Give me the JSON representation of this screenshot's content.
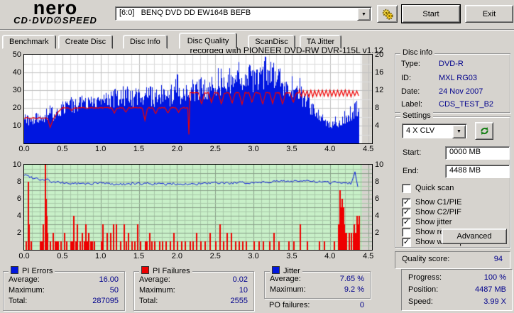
{
  "brand": {
    "line1": "nero",
    "line2a": "CD·DVD",
    "disc": "∅",
    "line2b": "SPEED"
  },
  "toolbar": {
    "drive": "[6:0]   BENQ DVD DD EW164B BEFB",
    "start": "Start",
    "exit": "Exit"
  },
  "tabs": [
    {
      "label": "Benchmark",
      "active": false
    },
    {
      "label": "Create Disc",
      "active": false
    },
    {
      "label": "Disc Info",
      "active": false
    },
    {
      "label": "Disc Quality",
      "active": true
    },
    {
      "label": "ScanDisc",
      "active": false
    },
    {
      "label": "TA Jitter",
      "active": false
    }
  ],
  "chart_data": [
    {
      "type": "bar",
      "title": "recorded with PIONEER DVD-RW  DVR-115L v1.12",
      "x_ticks": [
        "0.0",
        "0.5",
        "1.0",
        "1.5",
        "2.0",
        "2.5",
        "3.0",
        "3.5",
        "4.0",
        "4.5"
      ],
      "left_ticks": [
        50,
        40,
        30,
        20,
        10
      ],
      "right_ticks": [
        20,
        16,
        12,
        8,
        4
      ],
      "x_range": [
        0,
        4.55
      ],
      "left_range": [
        0,
        50
      ],
      "right_range": [
        0,
        20
      ],
      "data_end": 4.38,
      "colors": {
        "bars": "#0016e0",
        "speed_line": "#f00000",
        "grid_minor": "#dcdcdc",
        "grid_major": "#c0c0c0",
        "bg": "#ffffff",
        "tail": "#d6d3ce"
      },
      "pi_errors_envelope": [
        [
          0,
          13,
          18
        ],
        [
          0.1,
          12,
          16
        ],
        [
          0.2,
          13,
          18
        ],
        [
          0.3,
          15,
          21
        ],
        [
          0.4,
          16,
          22
        ],
        [
          0.5,
          19,
          24
        ],
        [
          0.6,
          21,
          26
        ],
        [
          0.7,
          21,
          26
        ],
        [
          0.8,
          22,
          28
        ],
        [
          0.9,
          22,
          27
        ],
        [
          1,
          23,
          28
        ],
        [
          1.1,
          23,
          30
        ],
        [
          1.2,
          24,
          31
        ],
        [
          1.3,
          26,
          33
        ],
        [
          1.4,
          25,
          31
        ],
        [
          1.5,
          27,
          34
        ],
        [
          1.6,
          27,
          33
        ],
        [
          1.7,
          25,
          31
        ],
        [
          1.8,
          26,
          33
        ],
        [
          1.9,
          26,
          36
        ],
        [
          2,
          26,
          40
        ],
        [
          2.1,
          27,
          41
        ],
        [
          2.2,
          29,
          36
        ],
        [
          2.3,
          31,
          38
        ],
        [
          2.4,
          30,
          37
        ],
        [
          2.5,
          32,
          42
        ],
        [
          2.6,
          34,
          44
        ],
        [
          2.7,
          33,
          42
        ],
        [
          2.8,
          35,
          47
        ],
        [
          2.9,
          37,
          49
        ],
        [
          3,
          36,
          46
        ],
        [
          3.1,
          37,
          48
        ],
        [
          3.2,
          38,
          50
        ],
        [
          3.3,
          36,
          47
        ],
        [
          3.4,
          33,
          43
        ],
        [
          3.5,
          30,
          41
        ],
        [
          3.6,
          27,
          37
        ],
        [
          3.7,
          22,
          31
        ],
        [
          3.8,
          16,
          23
        ],
        [
          3.9,
          12,
          17
        ],
        [
          4,
          10,
          14
        ],
        [
          4.1,
          11,
          16
        ],
        [
          4.2,
          13,
          19
        ],
        [
          4.3,
          16,
          22
        ],
        [
          4.38,
          20,
          26
        ]
      ],
      "write_speed": {
        "intro": [
          [
            0,
            14
          ],
          [
            0.04,
            14.6
          ],
          [
            0.08,
            13.8
          ],
          [
            0.12,
            14.5
          ],
          [
            0.16,
            13.9
          ],
          [
            0.2,
            14.5
          ],
          [
            0.24,
            14
          ],
          [
            0.28,
            14.4
          ],
          [
            0.31,
            13.8
          ],
          [
            0.34,
            9
          ],
          [
            0.38,
            13.5
          ],
          [
            0.44,
            17.5
          ],
          [
            0.5,
            20
          ]
        ],
        "flat1": {
          "from": 0.5,
          "to": 2.13,
          "level": 20,
          "dip_width": 0.035,
          "dips": [
            [
              0.62,
              18.5
            ],
            [
              1.18,
              17
            ],
            [
              1.33,
              17.5
            ],
            [
              1.58,
              13
            ],
            [
              1.72,
              16.5
            ],
            [
              1.88,
              17
            ],
            [
              2.02,
              17.5
            ]
          ]
        },
        "drop": [
          [
            2.14,
            20
          ],
          [
            2.155,
            5
          ],
          [
            2.17,
            28.5
          ]
        ],
        "flat2": {
          "from": 2.17,
          "to": 3.6,
          "level": 28.5,
          "dip_width": 0.04,
          "dips": [
            [
              2.32,
              22
            ],
            [
              2.45,
              23
            ],
            [
              2.58,
              22
            ],
            [
              2.72,
              22.5
            ],
            [
              2.85,
              22
            ],
            [
              2.98,
              23
            ],
            [
              3.12,
              22
            ],
            [
              3.25,
              22.5
            ],
            [
              3.38,
              22
            ],
            [
              3.52,
              23
            ]
          ]
        },
        "sawtooth": {
          "from": 3.6,
          "to": 4.38,
          "min": 26.5,
          "max": 29.8,
          "period": 0.05
        }
      }
    },
    {
      "type": "line",
      "x_ticks": [
        "0.0",
        "0.5",
        "1.0",
        "1.5",
        "2.0",
        "2.5",
        "3.0",
        "3.5",
        "4.0",
        "4.5"
      ],
      "left_ticks": [
        10,
        8,
        6,
        4,
        2
      ],
      "right_ticks": [
        10,
        8,
        6,
        4,
        2
      ],
      "x_range": [
        0,
        4.55
      ],
      "y_range": [
        0,
        10
      ],
      "data_end": 4.38,
      "colors": {
        "bg": "#c8f0c8",
        "grid_minor": "#a8c8a8",
        "grid_major": "#8aa08a",
        "jitter_line": "#1020dd",
        "pif_bars": "#ee0000",
        "tail": "#d6d3ce"
      },
      "jitter_line": [
        [
          0,
          8.8
        ],
        [
          0.05,
          8.7
        ],
        [
          0.1,
          8.5
        ],
        [
          0.15,
          8.45
        ],
        [
          0.2,
          8.3
        ],
        [
          0.25,
          8.2
        ],
        [
          0.3,
          8.35
        ],
        [
          0.35,
          7.95
        ],
        [
          0.45,
          7.9
        ],
        [
          0.6,
          7.8
        ],
        [
          0.8,
          7.75
        ],
        [
          1,
          7.85
        ],
        [
          1.2,
          7.7
        ],
        [
          1.4,
          7.75
        ],
        [
          1.6,
          7.8
        ],
        [
          1.8,
          7.7
        ],
        [
          2,
          7.75
        ],
        [
          2.2,
          7.7
        ],
        [
          2.4,
          7.8
        ],
        [
          2.6,
          7.85
        ],
        [
          2.8,
          7.85
        ],
        [
          3,
          7.9
        ],
        [
          3.2,
          8
        ],
        [
          3.4,
          8.05
        ],
        [
          3.6,
          8.1
        ],
        [
          3.8,
          8
        ],
        [
          4,
          7.9
        ],
        [
          4.1,
          7.95
        ],
        [
          4.2,
          7.9
        ],
        [
          4.28,
          7.8
        ],
        [
          4.33,
          9.2
        ],
        [
          4.36,
          7.5
        ]
      ],
      "pif_spikes": [
        [
          0.02,
          1
        ],
        [
          0.05,
          8
        ],
        [
          0.06,
          3
        ],
        [
          0.08,
          1
        ],
        [
          0.2,
          1
        ],
        [
          0.22,
          1
        ],
        [
          0.24,
          3
        ],
        [
          0.27,
          10
        ],
        [
          0.28,
          6
        ],
        [
          0.29,
          4
        ],
        [
          0.3,
          2
        ],
        [
          0.33,
          1
        ],
        [
          0.37,
          2
        ],
        [
          0.4,
          1
        ],
        [
          0.42,
          1
        ],
        [
          0.44,
          1
        ],
        [
          0.47,
          1
        ],
        [
          0.52,
          2
        ],
        [
          0.55,
          1
        ],
        [
          0.6,
          1
        ],
        [
          0.62,
          1
        ],
        [
          0.64,
          4
        ],
        [
          0.67,
          1
        ],
        [
          0.69,
          3
        ],
        [
          0.72,
          1
        ],
        [
          0.75,
          2
        ],
        [
          0.78,
          1
        ],
        [
          0.8,
          3
        ],
        [
          0.82,
          1
        ],
        [
          0.84,
          2
        ],
        [
          0.86,
          1
        ],
        [
          0.88,
          1
        ],
        [
          0.91,
          1
        ],
        [
          1,
          1
        ],
        [
          1.02,
          3
        ],
        [
          1.08,
          2
        ],
        [
          1.12,
          2
        ],
        [
          1.16,
          3
        ],
        [
          1.2,
          3
        ],
        [
          1.25,
          1
        ],
        [
          1.3,
          3
        ],
        [
          1.33,
          1
        ],
        [
          1.36,
          2
        ],
        [
          1.4,
          1
        ],
        [
          1.44,
          1
        ],
        [
          1.48,
          3
        ],
        [
          1.51,
          1
        ],
        [
          1.58,
          1
        ],
        [
          1.6,
          1
        ],
        [
          1.63,
          2
        ],
        [
          1.66,
          1
        ],
        [
          1.7,
          1
        ],
        [
          1.76,
          1
        ],
        [
          1.8,
          1
        ],
        [
          1.85,
          1
        ],
        [
          1.9,
          1
        ],
        [
          1.95,
          2
        ],
        [
          2,
          1
        ],
        [
          2.05,
          1
        ],
        [
          2.1,
          1
        ],
        [
          2.16,
          1
        ],
        [
          2.2,
          1
        ],
        [
          2.25,
          2
        ],
        [
          2.3,
          1
        ],
        [
          2.36,
          1
        ],
        [
          2.42,
          2
        ],
        [
          2.5,
          1
        ],
        [
          2.55,
          3
        ],
        [
          2.6,
          1
        ],
        [
          2.65,
          2
        ],
        [
          2.7,
          2
        ],
        [
          2.76,
          1
        ],
        [
          2.8,
          1
        ],
        [
          2.85,
          1
        ],
        [
          2.9,
          1
        ],
        [
          3,
          1
        ],
        [
          3.06,
          1
        ],
        [
          3.12,
          1
        ],
        [
          3.2,
          1
        ],
        [
          3.26,
          2
        ],
        [
          3.32,
          1
        ],
        [
          3.45,
          1
        ],
        [
          3.52,
          1
        ],
        [
          3.6,
          3
        ],
        [
          3.7,
          1
        ],
        [
          3.85,
          1
        ],
        [
          3.92,
          1
        ],
        [
          4.05,
          1
        ],
        [
          4.1,
          3
        ],
        [
          4.12,
          7
        ],
        [
          4.14,
          5
        ],
        [
          4.15,
          6
        ],
        [
          4.16,
          4
        ],
        [
          4.17,
          5
        ],
        [
          4.18,
          3
        ],
        [
          4.19,
          2
        ],
        [
          4.21,
          2
        ],
        [
          4.24,
          2
        ],
        [
          4.27,
          2
        ],
        [
          4.3,
          2
        ],
        [
          4.31,
          3
        ],
        [
          4.33,
          2
        ],
        [
          4.35,
          4
        ],
        [
          4.36,
          3
        ],
        [
          4.37,
          4
        ]
      ]
    }
  ],
  "disc_info": {
    "title": "Disc info",
    "rows": [
      {
        "label": "Type:",
        "value": "DVD-R"
      },
      {
        "label": "ID:",
        "value": "MXL RG03"
      },
      {
        "label": "Date:",
        "value": "24 Nov 2007"
      },
      {
        "label": "Label:",
        "value": "CDS_TEST_B2"
      }
    ]
  },
  "settings": {
    "title": "Settings",
    "speed": "4 X CLV",
    "start_label": "Start:",
    "start_value": "0000 MB",
    "end_label": "End:",
    "end_value": "4488 MB",
    "checkboxes": [
      {
        "label": "Quick scan",
        "checked": false
      },
      {
        "label": "Show C1/PIE",
        "checked": true
      },
      {
        "label": "Show C2/PIF",
        "checked": true
      },
      {
        "label": "Show jitter",
        "checked": true
      },
      {
        "label": "Show read speed",
        "checked": false
      },
      {
        "label": "Show write speed",
        "checked": true
      }
    ],
    "advanced": "Advanced"
  },
  "quality": {
    "label": "Quality score:",
    "value": "94"
  },
  "legend": {
    "pi_errors": {
      "title": "PI Errors",
      "color": "#0016e0",
      "rows": [
        {
          "label": "Average:",
          "value": "16.00"
        },
        {
          "label": "Maximum:",
          "value": "50"
        },
        {
          "label": "Total:",
          "value": "287095"
        }
      ]
    },
    "pi_failures": {
      "title": "PI Failures",
      "color": "#ee0000",
      "rows": [
        {
          "label": "Average:",
          "value": "0.02"
        },
        {
          "label": "Maximum:",
          "value": "10"
        },
        {
          "label": "Total:",
          "value": "2555"
        }
      ]
    },
    "jitter": {
      "title": "Jitter",
      "color": "#0016e0",
      "rows": [
        {
          "label": "Average:",
          "value": "7.65 %"
        },
        {
          "label": "Maximum:",
          "value": "9.2 %"
        }
      ]
    },
    "po_failures": {
      "label": "PO failures:",
      "value": "0"
    }
  },
  "progress": {
    "rows": [
      {
        "label": "Progress:",
        "value": "100 %"
      },
      {
        "label": "Position:",
        "value": "4487 MB"
      },
      {
        "label": "Speed:",
        "value": "3.99 X"
      }
    ]
  }
}
